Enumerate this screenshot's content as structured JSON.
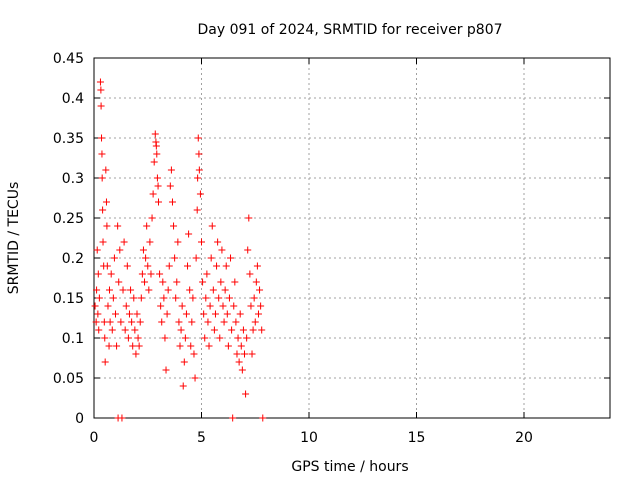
{
  "chart_data": {
    "type": "scatter",
    "title": "Day 091 of 2024, SRMTID for receiver p807",
    "xlabel": "GPS time / hours",
    "ylabel": "SRMTID / TECUs",
    "xlim": [
      0,
      24
    ],
    "ylim": [
      0,
      0.45
    ],
    "x_ticks": [
      0,
      5,
      10,
      15,
      20
    ],
    "y_ticks": [
      0,
      0.05,
      0.1,
      0.15,
      0.2,
      0.25,
      0.3,
      0.35,
      0.4,
      0.45
    ],
    "x_tick_labels": [
      "0",
      "5",
      "10",
      "15",
      "20"
    ],
    "y_tick_labels": [
      "0",
      "0.05",
      "0.1",
      "0.15",
      "0.2",
      "0.25",
      "0.3",
      "0.35",
      "0.4",
      "0.45"
    ],
    "grid": true,
    "marker": "+",
    "color": "#ff0000",
    "x_data_range": [
      0,
      8.0
    ],
    "series": [
      {
        "name": "p807",
        "points": [
          [
            0.05,
            0.14
          ],
          [
            0.1,
            0.12
          ],
          [
            0.12,
            0.16
          ],
          [
            0.15,
            0.21
          ],
          [
            0.18,
            0.13
          ],
          [
            0.2,
            0.18
          ],
          [
            0.22,
            0.11
          ],
          [
            0.25,
            0.15
          ],
          [
            0.3,
            0.42
          ],
          [
            0.32,
            0.41
          ],
          [
            0.33,
            0.39
          ],
          [
            0.35,
            0.35
          ],
          [
            0.37,
            0.33
          ],
          [
            0.38,
            0.3
          ],
          [
            0.4,
            0.26
          ],
          [
            0.42,
            0.22
          ],
          [
            0.45,
            0.19
          ],
          [
            0.48,
            0.12
          ],
          [
            0.5,
            0.1
          ],
          [
            0.52,
            0.07
          ],
          [
            0.55,
            0.31
          ],
          [
            0.58,
            0.27
          ],
          [
            0.6,
            0.24
          ],
          [
            0.62,
            0.19
          ],
          [
            0.65,
            0.14
          ],
          [
            0.7,
            0.09
          ],
          [
            0.72,
            0.16
          ],
          [
            0.75,
            0.12
          ],
          [
            0.8,
            0.18
          ],
          [
            0.85,
            0.11
          ],
          [
            0.9,
            0.15
          ],
          [
            0.95,
            0.2
          ],
          [
            1.0,
            0.13
          ],
          [
            1.05,
            0.09
          ],
          [
            1.1,
            0.24
          ],
          [
            1.12,
            0.0
          ],
          [
            1.15,
            0.17
          ],
          [
            1.2,
            0.21
          ],
          [
            1.25,
            0.12
          ],
          [
            1.3,
            0.0
          ],
          [
            1.35,
            0.16
          ],
          [
            1.4,
            0.22
          ],
          [
            1.45,
            0.11
          ],
          [
            1.5,
            0.14
          ],
          [
            1.55,
            0.19
          ],
          [
            1.6,
            0.1
          ],
          [
            1.65,
            0.13
          ],
          [
            1.7,
            0.16
          ],
          [
            1.75,
            0.12
          ],
          [
            1.8,
            0.09
          ],
          [
            1.85,
            0.15
          ],
          [
            1.9,
            0.11
          ],
          [
            1.95,
            0.08
          ],
          [
            2.0,
            0.13
          ],
          [
            2.05,
            0.1
          ],
          [
            2.1,
            0.09
          ],
          [
            2.15,
            0.12
          ],
          [
            2.2,
            0.15
          ],
          [
            2.25,
            0.18
          ],
          [
            2.3,
            0.21
          ],
          [
            2.35,
            0.17
          ],
          [
            2.4,
            0.2
          ],
          [
            2.45,
            0.24
          ],
          [
            2.5,
            0.19
          ],
          [
            2.55,
            0.16
          ],
          [
            2.6,
            0.22
          ],
          [
            2.65,
            0.18
          ],
          [
            2.7,
            0.25
          ],
          [
            2.75,
            0.28
          ],
          [
            2.8,
            0.32
          ],
          [
            2.85,
            0.355
          ],
          [
            2.88,
            0.345
          ],
          [
            2.9,
            0.34
          ],
          [
            2.92,
            0.33
          ],
          [
            2.95,
            0.3
          ],
          [
            2.98,
            0.29
          ],
          [
            3.0,
            0.27
          ],
          [
            3.05,
            0.18
          ],
          [
            3.1,
            0.14
          ],
          [
            3.15,
            0.12
          ],
          [
            3.2,
            0.17
          ],
          [
            3.25,
            0.15
          ],
          [
            3.3,
            0.1
          ],
          [
            3.35,
            0.06
          ],
          [
            3.4,
            0.13
          ],
          [
            3.45,
            0.16
          ],
          [
            3.5,
            0.19
          ],
          [
            3.55,
            0.29
          ],
          [
            3.6,
            0.31
          ],
          [
            3.65,
            0.27
          ],
          [
            3.7,
            0.24
          ],
          [
            3.75,
            0.2
          ],
          [
            3.8,
            0.15
          ],
          [
            3.85,
            0.17
          ],
          [
            3.9,
            0.22
          ],
          [
            3.95,
            0.12
          ],
          [
            4.0,
            0.09
          ],
          [
            4.05,
            0.11
          ],
          [
            4.1,
            0.14
          ],
          [
            4.15,
            0.04
          ],
          [
            4.2,
            0.07
          ],
          [
            4.25,
            0.1
          ],
          [
            4.3,
            0.13
          ],
          [
            4.35,
            0.19
          ],
          [
            4.4,
            0.23
          ],
          [
            4.45,
            0.16
          ],
          [
            4.5,
            0.09
          ],
          [
            4.55,
            0.12
          ],
          [
            4.6,
            0.15
          ],
          [
            4.65,
            0.08
          ],
          [
            4.7,
            0.05
          ],
          [
            4.75,
            0.2
          ],
          [
            4.8,
            0.26
          ],
          [
            4.82,
            0.3
          ],
          [
            4.85,
            0.35
          ],
          [
            4.88,
            0.33
          ],
          [
            4.9,
            0.31
          ],
          [
            4.95,
            0.28
          ],
          [
            5.0,
            0.22
          ],
          [
            5.05,
            0.17
          ],
          [
            5.1,
            0.13
          ],
          [
            5.15,
            0.1
          ],
          [
            5.2,
            0.15
          ],
          [
            5.25,
            0.18
          ],
          [
            5.3,
            0.12
          ],
          [
            5.35,
            0.09
          ],
          [
            5.4,
            0.14
          ],
          [
            5.45,
            0.2
          ],
          [
            5.5,
            0.24
          ],
          [
            5.55,
            0.16
          ],
          [
            5.6,
            0.11
          ],
          [
            5.65,
            0.13
          ],
          [
            5.7,
            0.19
          ],
          [
            5.75,
            0.22
          ],
          [
            5.8,
            0.15
          ],
          [
            5.85,
            0.1
          ],
          [
            5.9,
            0.17
          ],
          [
            5.95,
            0.21
          ],
          [
            6.0,
            0.14
          ],
          [
            6.05,
            0.12
          ],
          [
            6.1,
            0.16
          ],
          [
            6.15,
            0.19
          ],
          [
            6.2,
            0.13
          ],
          [
            6.25,
            0.09
          ],
          [
            6.3,
            0.15
          ],
          [
            6.35,
            0.2
          ],
          [
            6.4,
            0.11
          ],
          [
            6.45,
            0.0
          ],
          [
            6.5,
            0.14
          ],
          [
            6.55,
            0.17
          ],
          [
            6.6,
            0.12
          ],
          [
            6.65,
            0.08
          ],
          [
            6.7,
            0.1
          ],
          [
            6.75,
            0.07
          ],
          [
            6.8,
            0.13
          ],
          [
            6.85,
            0.09
          ],
          [
            6.9,
            0.06
          ],
          [
            6.95,
            0.11
          ],
          [
            7.0,
            0.08
          ],
          [
            7.05,
            0.03
          ],
          [
            7.1,
            0.1
          ],
          [
            7.15,
            0.21
          ],
          [
            7.2,
            0.25
          ],
          [
            7.25,
            0.18
          ],
          [
            7.3,
            0.14
          ],
          [
            7.35,
            0.08
          ],
          [
            7.4,
            0.11
          ],
          [
            7.45,
            0.15
          ],
          [
            7.5,
            0.12
          ],
          [
            7.55,
            0.17
          ],
          [
            7.6,
            0.19
          ],
          [
            7.65,
            0.13
          ],
          [
            7.7,
            0.16
          ],
          [
            7.75,
            0.14
          ],
          [
            7.8,
            0.11
          ],
          [
            7.85,
            0.0
          ]
        ]
      }
    ]
  }
}
